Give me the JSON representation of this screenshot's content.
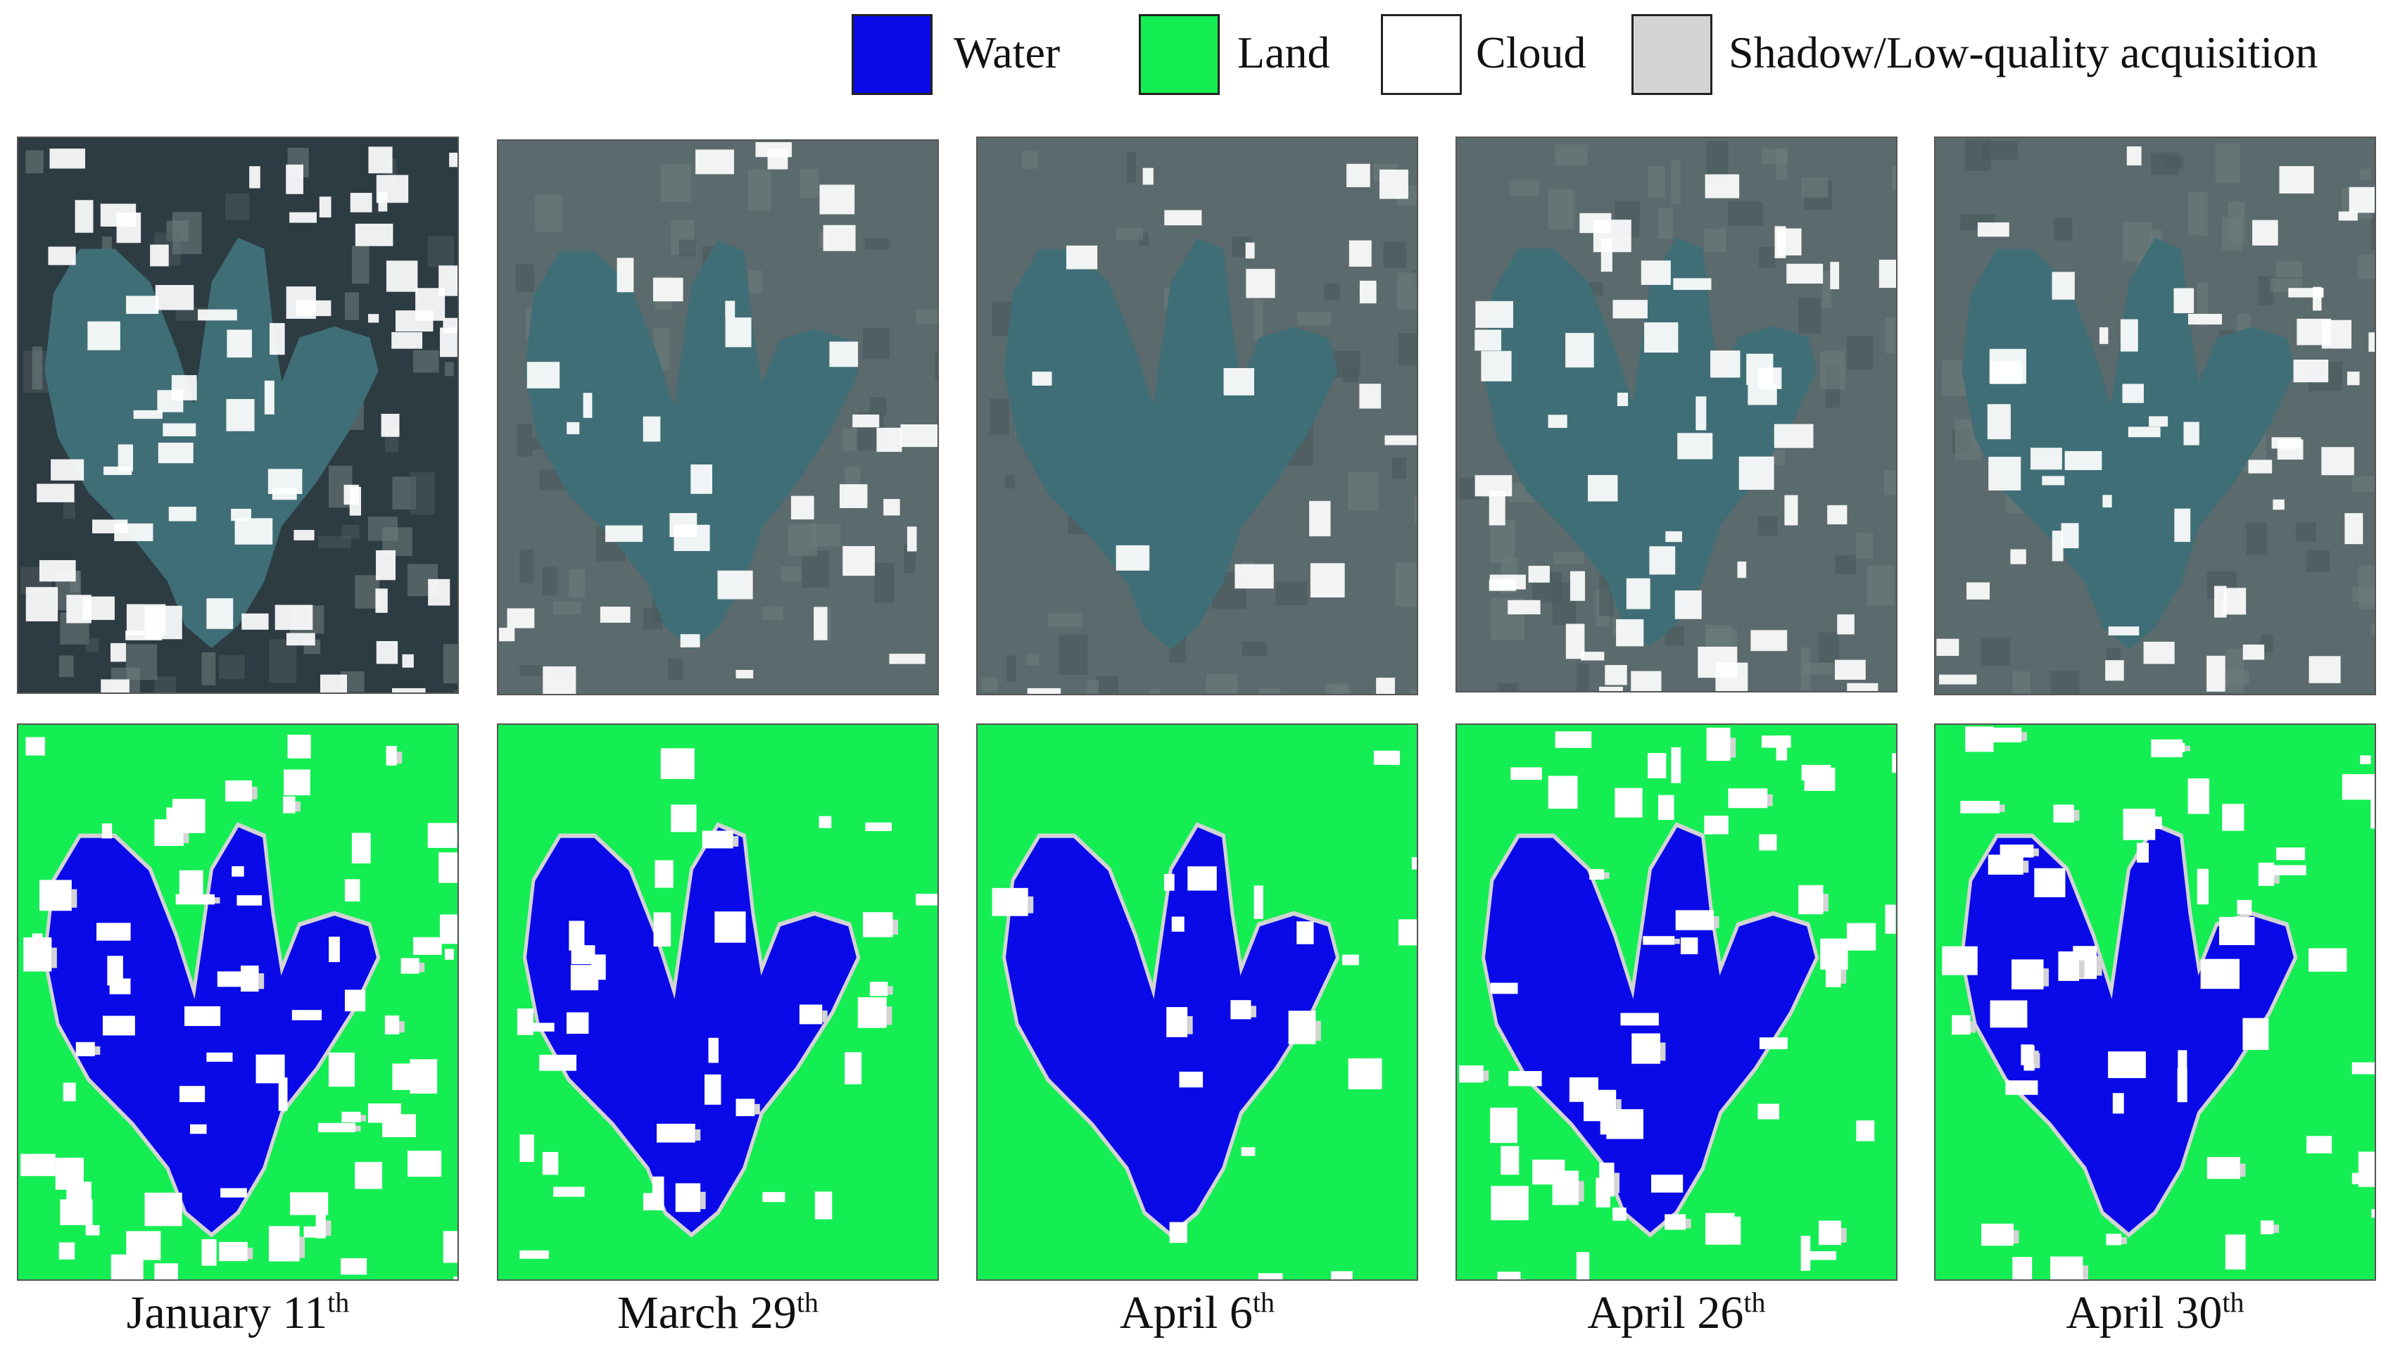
{
  "legend": [
    {
      "label": "Water",
      "color": "#0a0ae8"
    },
    {
      "label": "Land",
      "color": "#14ee53"
    },
    {
      "label": "Cloud",
      "color": "#ffffff"
    },
    {
      "label": "Shadow/Low-quality acquisition",
      "color": "#d4d4d4"
    }
  ],
  "dates": [
    {
      "month_day": "January 11",
      "suffix": "th"
    },
    {
      "month_day": "March 29",
      "suffix": "th"
    },
    {
      "month_day": "April 6",
      "suffix": "th"
    },
    {
      "month_day": "April 26",
      "suffix": "th"
    },
    {
      "month_day": "April 30",
      "suffix": "th"
    }
  ],
  "palette": {
    "satellite_dark": "#2d3b42",
    "satellite_lake": "#3f6e76",
    "satellite_land": "#5b6a6c",
    "cloud": "#ffffff",
    "water": "#0a0ae8",
    "land": "#14ee53",
    "shadow": "#d4d4d4"
  }
}
